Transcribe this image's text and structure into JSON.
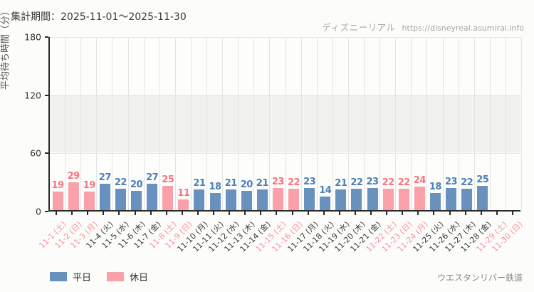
{
  "header": {
    "title": "集計期間：2025-11-01～2025-11-30",
    "watermark_brand": "ディズニーリアル",
    "watermark_url": "https://disneyreal.asumirai.info"
  },
  "footer": {
    "attraction": "ウエスタンリバー鉄道"
  },
  "colors": {
    "weekday_bar": "#6991bd",
    "holiday_bar": "#f9a0a8",
    "weekday_text": "#4a7fb6",
    "holiday_text": "#f8737e",
    "band_gray": "#f1f1f0",
    "grid": "#e4e4e4",
    "axis": "#2a2a2a"
  },
  "chart_data": {
    "type": "bar",
    "title": "",
    "xlabel": "",
    "ylabel": "平均待ち時間（分）",
    "ylim": [
      0,
      180
    ],
    "yticks": [
      0,
      60,
      120,
      180
    ],
    "grid": true,
    "legend_position": "bottom-left",
    "categories": [
      "11-1 (土)",
      "11-2 (日)",
      "11-3 (月)",
      "11-4 (火)",
      "11-5 (水)",
      "11-6 (木)",
      "11-7 (金)",
      "11-8 (土)",
      "11-9 (日)",
      "11-10 (月)",
      "11-11 (火)",
      "11-12 (水)",
      "11-13 (木)",
      "11-14 (金)",
      "11-15 (土)",
      "11-16 (日)",
      "11-17 (月)",
      "11-18 (火)",
      "11-19 (水)",
      "11-20 (木)",
      "11-21 (金)",
      "11-22 (土)",
      "11-23 (日)",
      "11-24 (月)",
      "11-25 (火)",
      "11-26 (水)",
      "11-27 (木)",
      "11-28 (金)",
      "11-29 (土)",
      "11-30 (日)"
    ],
    "day_types": [
      "holiday",
      "holiday",
      "holiday",
      "weekday",
      "weekday",
      "weekday",
      "weekday",
      "holiday",
      "holiday",
      "weekday",
      "weekday",
      "weekday",
      "weekday",
      "weekday",
      "holiday",
      "holiday",
      "weekday",
      "weekday",
      "weekday",
      "weekday",
      "weekday",
      "holiday",
      "holiday",
      "holiday",
      "weekday",
      "weekday",
      "weekday",
      "weekday",
      "holiday",
      "holiday"
    ],
    "series": [
      {
        "name": "平日",
        "key": "weekday",
        "color": "#6991bd",
        "values": [
          null,
          null,
          null,
          27,
          22,
          20,
          27,
          null,
          null,
          21,
          18,
          21,
          20,
          21,
          null,
          null,
          23,
          14,
          21,
          22,
          23,
          null,
          null,
          null,
          18,
          23,
          22,
          25,
          null,
          null
        ]
      },
      {
        "name": "休日",
        "key": "holiday",
        "color": "#f9a0a8",
        "values": [
          19,
          29,
          19,
          null,
          null,
          null,
          null,
          25,
          11,
          null,
          null,
          null,
          null,
          null,
          23,
          22,
          null,
          null,
          null,
          null,
          null,
          22,
          22,
          24,
          null,
          null,
          null,
          null,
          null,
          null
        ]
      }
    ]
  }
}
